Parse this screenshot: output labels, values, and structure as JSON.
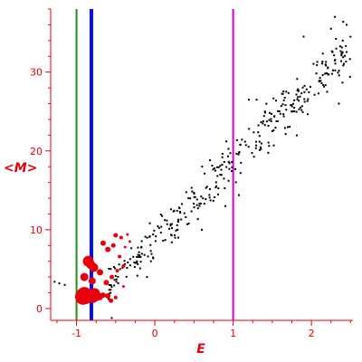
{
  "chart_data": {
    "type": "scatter",
    "xlabel": "E",
    "ylabel": "<M>",
    "xlim": [
      -1.33,
      2.53
    ],
    "ylim": [
      -1.5,
      38
    ],
    "xticks": [
      -1,
      0,
      1,
      2
    ],
    "yticks": [
      0,
      10,
      20,
      30
    ],
    "grid": false,
    "axis_color": "#e8000b",
    "vertical_lines": [
      {
        "x": -1.0,
        "color": "#1e8c1e",
        "width": "thin"
      },
      {
        "x": -0.81,
        "color": "#0010ff",
        "width": "thick"
      },
      {
        "x": 1.0,
        "color": "#d400d4",
        "width": "thin"
      }
    ],
    "series": [
      {
        "marker": "dot",
        "color": "#000000",
        "trend": {
          "x0": -0.6,
          "y0": 3.0,
          "x1": 2.5,
          "y1": 33.0,
          "scatter_sd": 2.8,
          "count": 360
        },
        "points": [
          [
            2.3,
            37.0
          ],
          [
            2.25,
            35.5
          ],
          [
            2.4,
            34.0
          ],
          [
            1.9,
            34.5
          ],
          [
            2.45,
            36.0
          ],
          [
            2.35,
            26.0
          ],
          [
            2.2,
            27.5
          ],
          [
            1.3,
            26.5
          ],
          [
            1.2,
            26.5
          ],
          [
            1.5,
            22.5
          ],
          [
            1.1,
            18.5
          ],
          [
            0.9,
            13.0
          ],
          [
            0.6,
            10.0
          ],
          [
            0.3,
            9.0
          ],
          [
            -0.05,
            6.0
          ],
          [
            -0.1,
            4.0
          ],
          [
            -1.28,
            3.4
          ],
          [
            -1.22,
            3.2
          ],
          [
            -1.15,
            3.0
          ],
          [
            -0.55,
            -1.2
          ]
        ]
      },
      {
        "marker": "filled-circle",
        "color": "#e8000b",
        "points": [
          [
            -0.95,
            1.5,
            6
          ],
          [
            -0.92,
            1.4,
            8
          ],
          [
            -0.9,
            1.7,
            9
          ],
          [
            -0.88,
            1.5,
            8
          ],
          [
            -0.86,
            1.6,
            7
          ],
          [
            -0.84,
            1.8,
            6
          ],
          [
            -0.8,
            1.5,
            7
          ],
          [
            -0.77,
            1.9,
            6
          ],
          [
            -0.75,
            1.5,
            5
          ],
          [
            -0.72,
            1.6,
            4
          ],
          [
            -0.7,
            1.4,
            3
          ],
          [
            -0.66,
            1.7,
            3
          ],
          [
            -0.6,
            1.6,
            3
          ],
          [
            -0.56,
            1.0,
            2.5
          ],
          [
            -0.5,
            1.4,
            2
          ],
          [
            -0.85,
            6.0,
            6
          ],
          [
            -0.82,
            5.6,
            5
          ],
          [
            -0.78,
            5.2,
            5
          ],
          [
            -0.8,
            3.5,
            4
          ],
          [
            -0.9,
            4.0,
            4.5
          ],
          [
            -0.7,
            4.6,
            3.5
          ],
          [
            -0.62,
            3.3,
            3
          ],
          [
            -0.55,
            4.0,
            2.5
          ],
          [
            -0.66,
            8.3,
            3
          ],
          [
            -0.6,
            7.5,
            3
          ],
          [
            -0.53,
            8.0,
            2.5
          ],
          [
            -0.45,
            6.6,
            2
          ],
          [
            -0.4,
            5.4,
            2
          ],
          [
            -0.5,
            9.3,
            2.5
          ],
          [
            -0.43,
            9.0,
            2
          ],
          [
            -0.35,
            9.4,
            1.5
          ],
          [
            -0.38,
            7.8,
            1.5
          ],
          [
            -0.32,
            8.5,
            1.5
          ],
          [
            -0.48,
            4.8,
            2
          ],
          [
            -0.4,
            2.8,
            1.5
          ]
        ]
      }
    ]
  }
}
